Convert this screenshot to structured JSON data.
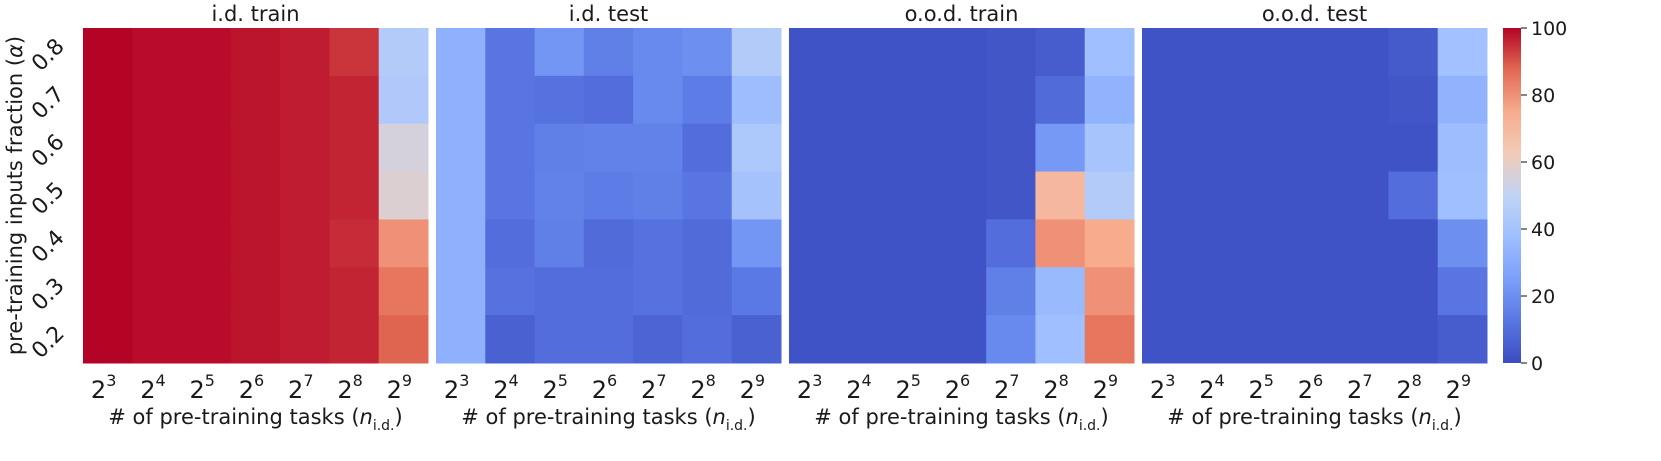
{
  "chart_data": [
    {
      "type": "heatmap",
      "title": "i.d. train",
      "xlabel": "# of pre-training tasks (n_i.d.)",
      "ylabel": "pre-training inputs fraction (α)",
      "x_categories": [
        "2^3",
        "2^4",
        "2^5",
        "2^6",
        "2^7",
        "2^8",
        "2^9"
      ],
      "y_categories": [
        "0.8",
        "0.7",
        "0.6",
        "0.5",
        "0.4",
        "0.3",
        "0.2"
      ],
      "values": [
        [
          100,
          99,
          99,
          98,
          97,
          94,
          45
        ],
        [
          100,
          99,
          99,
          98,
          97,
          96,
          44
        ],
        [
          100,
          99,
          99,
          98,
          97,
          96,
          55
        ],
        [
          100,
          99,
          99,
          98,
          97,
          96,
          57
        ],
        [
          100,
          99,
          99,
          98,
          97,
          95,
          80
        ],
        [
          100,
          99,
          99,
          98,
          97,
          96,
          85
        ],
        [
          100,
          99,
          99,
          98,
          97,
          96,
          88
        ]
      ]
    },
    {
      "type": "heatmap",
      "title": "i.d. test",
      "xlabel": "# of pre-training tasks (n_i.d.)",
      "ylabel": "",
      "x_categories": [
        "2^3",
        "2^4",
        "2^5",
        "2^6",
        "2^7",
        "2^8",
        "2^9"
      ],
      "y_categories": [
        "0.8",
        "0.7",
        "0.6",
        "0.5",
        "0.4",
        "0.3",
        "0.2"
      ],
      "values": [
        [
          32,
          12,
          22,
          15,
          18,
          20,
          45
        ],
        [
          32,
          12,
          11,
          10,
          18,
          14,
          37
        ],
        [
          32,
          12,
          15,
          16,
          16,
          10,
          43
        ],
        [
          32,
          12,
          16,
          14,
          15,
          12,
          40
        ],
        [
          32,
          10,
          15,
          9,
          11,
          9,
          22
        ],
        [
          32,
          11,
          10,
          10,
          11,
          9,
          13
        ],
        [
          32,
          6,
          10,
          10,
          7,
          10,
          6
        ]
      ]
    },
    {
      "type": "heatmap",
      "title": "o.o.d. train",
      "xlabel": "# of pre-training tasks (n_i.d.)",
      "ylabel": "",
      "x_categories": [
        "2^3",
        "2^4",
        "2^5",
        "2^6",
        "2^7",
        "2^8",
        "2^9"
      ],
      "y_categories": [
        "0.8",
        "0.7",
        "0.6",
        "0.5",
        "0.4",
        "0.3",
        "0.2"
      ],
      "values": [
        [
          2,
          2,
          2,
          2,
          3,
          5,
          38
        ],
        [
          2,
          2,
          2,
          2,
          3,
          9,
          33
        ],
        [
          2,
          2,
          2,
          2,
          3,
          23,
          41
        ],
        [
          2,
          2,
          2,
          2,
          3,
          70,
          45
        ],
        [
          2,
          2,
          2,
          2,
          10,
          80,
          75
        ],
        [
          2,
          2,
          2,
          2,
          15,
          36,
          80
        ],
        [
          2,
          2,
          2,
          2,
          18,
          38,
          85
        ]
      ]
    },
    {
      "type": "heatmap",
      "title": "o.o.d. test",
      "xlabel": "# of pre-training tasks (n_i.d.)",
      "ylabel": "",
      "x_categories": [
        "2^3",
        "2^4",
        "2^5",
        "2^6",
        "2^7",
        "2^8",
        "2^9"
      ],
      "y_categories": [
        "0.8",
        "0.7",
        "0.6",
        "0.5",
        "0.4",
        "0.3",
        "0.2"
      ],
      "values": [
        [
          2,
          2,
          2,
          2,
          2,
          4,
          39
        ],
        [
          2,
          2,
          2,
          2,
          2,
          3,
          33
        ],
        [
          2,
          2,
          2,
          2,
          2,
          2,
          37
        ],
        [
          2,
          2,
          2,
          2,
          2,
          10,
          38
        ],
        [
          2,
          2,
          2,
          2,
          2,
          2,
          20
        ],
        [
          2,
          2,
          2,
          2,
          2,
          2,
          12
        ],
        [
          2,
          2,
          2,
          2,
          2,
          2,
          5
        ]
      ]
    }
  ],
  "colorbar": {
    "colormap": "coolwarm",
    "range": [
      0,
      100
    ],
    "ticks": [
      0,
      20,
      40,
      60,
      80,
      100
    ]
  }
}
